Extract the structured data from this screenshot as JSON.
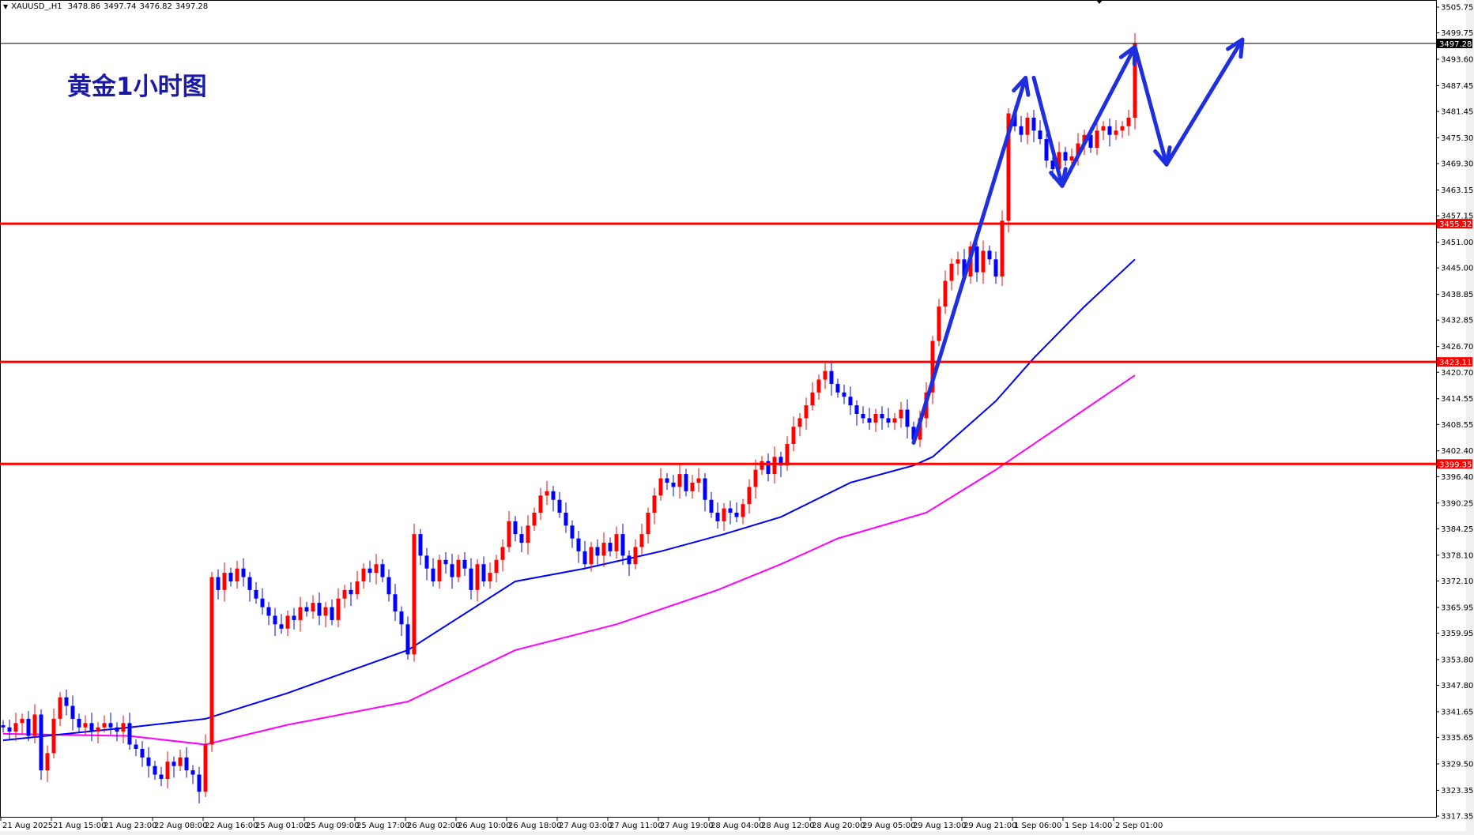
{
  "header": {
    "symbol": "XAUUSD_,H1",
    "open": "3478.86",
    "high": "3497.74",
    "low": "3476.82",
    "close": "3497.28"
  },
  "annotation_title": "黄金1小时图",
  "colors": {
    "bull": "#ff0000",
    "bear": "#0000ff",
    "ma_fast": "#0000ff",
    "ma_slow": "#ff00ff",
    "level": "#ff0000",
    "arrow": "#1f2fe0",
    "current": "#000000"
  },
  "chart_data": {
    "type": "candlestick",
    "title": "",
    "grid": false,
    "ylim": [
      3317.35,
      3505.75
    ],
    "y_ticks": [
      "3505.75",
      "3499.75",
      "3493.60",
      "3487.45",
      "3481.45",
      "3475.30",
      "3469.30",
      "3463.15",
      "3457.15",
      "3451.00",
      "3445.00",
      "3438.85",
      "3432.85",
      "3426.70",
      "3420.70",
      "3414.55",
      "3408.55",
      "3402.40",
      "3396.40",
      "3390.25",
      "3384.25",
      "3378.10",
      "3372.10",
      "3365.95",
      "3359.95",
      "3353.80",
      "3347.80",
      "3341.65",
      "3335.65",
      "3329.50",
      "3323.35",
      "3317.35"
    ],
    "x_labels": [
      "21 Aug 2025",
      "21 Aug 15:00",
      "21 Aug 23:00",
      "22 Aug 08:00",
      "22 Aug 16:00",
      "25 Aug 01:00",
      "25 Aug 09:00",
      "25 Aug 17:00",
      "26 Aug 02:00",
      "26 Aug 10:00",
      "26 Aug 18:00",
      "27 Aug 03:00",
      "27 Aug 11:00",
      "27 Aug 19:00",
      "28 Aug 04:00",
      "28 Aug 12:00",
      "28 Aug 20:00",
      "29 Aug 05:00",
      "29 Aug 13:00",
      "29 Aug 21:00",
      "1 Sep 06:00",
      "1 Sep 14:00",
      "2 Sep 01:00"
    ],
    "x_label_every_bars": 8,
    "closes": [
      3338,
      3337,
      3339,
      3340,
      3336,
      3341,
      3328,
      3332,
      3340,
      3345,
      3343,
      3340,
      3338,
      3339,
      3337,
      3338,
      3339,
      3338,
      3337,
      3339,
      3334,
      3333,
      3331,
      3329,
      3327,
      3326,
      3330,
      3329,
      3331,
      3328,
      3327,
      3323,
      3334,
      3373,
      3370,
      3374,
      3372,
      3375,
      3373,
      3370,
      3368,
      3366,
      3364,
      3362,
      3361,
      3364,
      3363,
      3366,
      3365,
      3367,
      3364,
      3366,
      3363,
      3368,
      3370,
      3369,
      3372,
      3375,
      3374,
      3376,
      3373,
      3369,
      3365,
      3362,
      3355,
      3383,
      3378,
      3375,
      3372,
      3377,
      3376,
      3373,
      3377,
      3375,
      3370,
      3376,
      3372,
      3374,
      3377,
      3380,
      3386,
      3383,
      3381,
      3385,
      3388,
      3392,
      3393,
      3391,
      3388,
      3385,
      3382,
      3379,
      3376,
      3380,
      3378,
      3381,
      3379,
      3383,
      3378,
      3376,
      3380,
      3383,
      3388,
      3392,
      3396,
      3395,
      3394,
      3397,
      3393,
      3395,
      3396,
      3391,
      3388,
      3386,
      3389,
      3388,
      3387,
      3390,
      3394,
      3398,
      3400,
      3397,
      3401,
      3399,
      3404,
      3408,
      3410,
      3413,
      3416,
      3419,
      3421,
      3418,
      3416,
      3415,
      3413,
      3411,
      3410,
      3409,
      3411,
      3410,
      3409,
      3410,
      3412,
      3408,
      3405,
      3410,
      3416,
      3428,
      3436,
      3442,
      3446,
      3447,
      3443,
      3450,
      3444,
      3449,
      3447,
      3443,
      3456,
      3481,
      3478,
      3476,
      3480,
      3477,
      3475,
      3470,
      3468,
      3472,
      3470,
      3471,
      3474,
      3476,
      3473,
      3477,
      3478,
      3476,
      3477,
      3478,
      3480,
      3497.28
    ],
    "ma_fast": [
      [
        0,
        3335
      ],
      [
        20,
        3338
      ],
      [
        32,
        3340
      ],
      [
        45,
        3346
      ],
      [
        64,
        3356
      ],
      [
        81,
        3372
      ],
      [
        92,
        3375
      ],
      [
        104,
        3379
      ],
      [
        114,
        3383
      ],
      [
        123,
        3387
      ],
      [
        134,
        3395
      ],
      [
        144,
        3399
      ],
      [
        147,
        3401
      ],
      [
        157,
        3414
      ],
      [
        163,
        3424
      ],
      [
        171,
        3436
      ],
      [
        179,
        3447
      ]
    ],
    "ma_slow": [
      [
        0,
        3336.5
      ],
      [
        20,
        3336
      ],
      [
        32,
        3334
      ],
      [
        45,
        3338.6
      ],
      [
        64,
        3344
      ],
      [
        81,
        3356
      ],
      [
        97,
        3362
      ],
      [
        113,
        3370
      ],
      [
        123,
        3376
      ],
      [
        132,
        3382
      ],
      [
        146,
        3388
      ],
      [
        157,
        3398
      ],
      [
        163,
        3404
      ],
      [
        179,
        3420
      ]
    ],
    "levels": [
      {
        "price": 3455.32,
        "label": "3455.32"
      },
      {
        "price": 3423.11,
        "label": "3423.11"
      },
      {
        "price": 3399.35,
        "label": "3399.35"
      }
    ],
    "current_price": {
      "price": 3497.28,
      "label": "3497.28"
    },
    "arrow_path": [
      [
        144,
        3404.3
      ],
      [
        161.7,
        3489.3
      ]
    ],
    "arrow_paths": [
      [
        [
          144,
          3404.3
        ],
        [
          161.7,
          3489.3
        ]
      ],
      [
        [
          163,
          3489.3
        ],
        [
          167.5,
          3464.1
        ]
      ],
      [
        [
          167.5,
          3464.1
        ],
        [
          179,
          3496.5
        ]
      ],
      [
        [
          179,
          3496.5
        ],
        [
          184,
          3469.1
        ]
      ],
      [
        [
          184,
          3469.1
        ],
        [
          196,
          3498.2
        ]
      ]
    ]
  }
}
